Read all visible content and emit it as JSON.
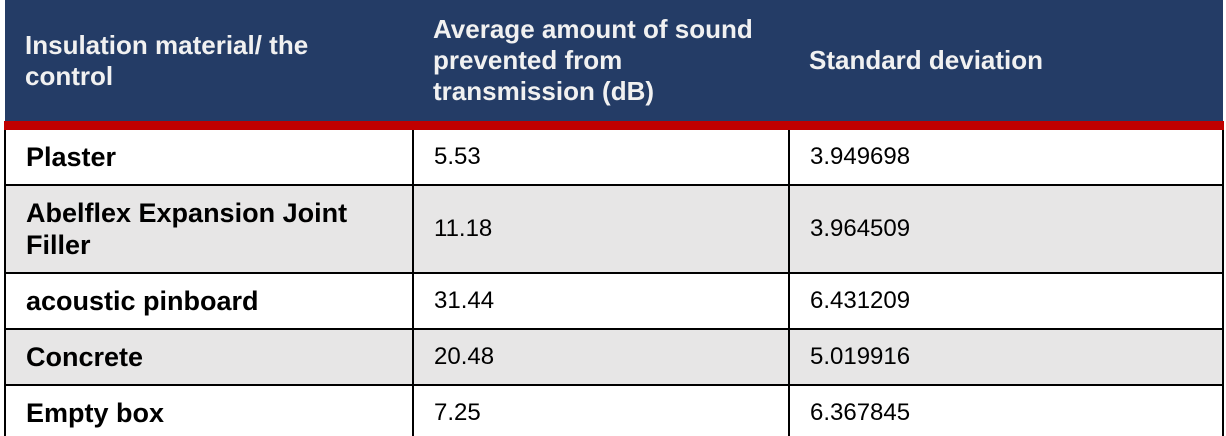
{
  "chart_data": {
    "type": "table",
    "columns": [
      "Insulation material/ the control",
      "Average amount of sound prevented from transmission (dB)",
      "Standard deviation"
    ],
    "rows": [
      [
        "Plaster",
        "5.53",
        "3.949698"
      ],
      [
        "Abelflex Expansion Joint Filler",
        "11.18",
        "3.964509"
      ],
      [
        "acoustic pinboard",
        "31.44",
        "6.431209"
      ],
      [
        "Concrete",
        "20.48",
        "5.019916"
      ],
      [
        "Empty box",
        "7.25",
        "6.367845"
      ]
    ]
  },
  "colors": {
    "header_bg": "#243C66",
    "header_text": "#F1F1F1",
    "divider_red": "#C00000",
    "row_stripe": "#E7E6E6",
    "row_plain": "#FFFFFF",
    "grid_border": "#000000",
    "body_text": "#000000"
  }
}
